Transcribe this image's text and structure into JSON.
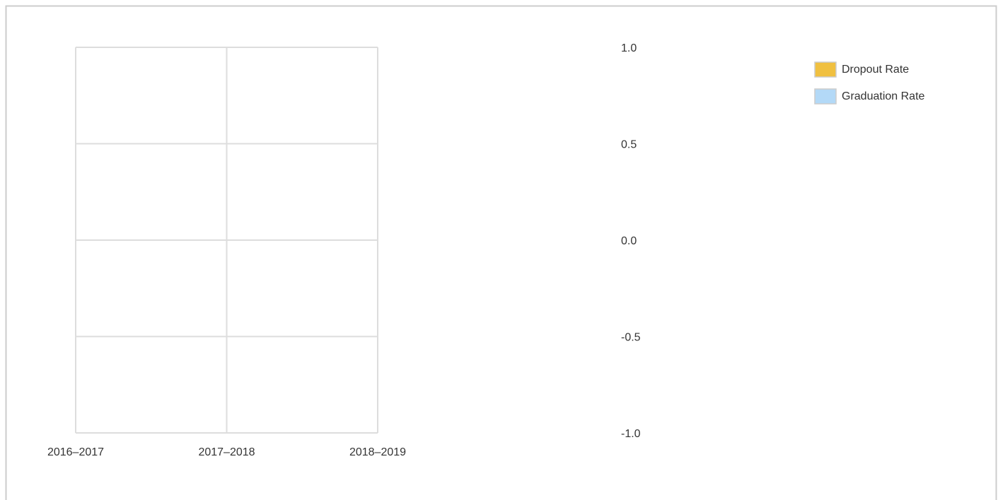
{
  "chart_data": {
    "type": "line",
    "categories": [
      "2016–2017",
      "2017–2018",
      "2018–2019"
    ],
    "series": [
      {
        "name": "Dropout Rate",
        "color": "#f0c040",
        "values": [
          null,
          null,
          null
        ]
      },
      {
        "name": "Graduation Rate",
        "color": "#b3d9f7",
        "values": [
          null,
          null,
          null
        ]
      }
    ],
    "ylim": [
      -1,
      1
    ],
    "yticks": [
      {
        "value": -1,
        "label": "-1.0"
      },
      -0.5,
      {
        "value": 0,
        "label": "0.0"
      },
      0.5,
      {
        "value": 1,
        "label": "1.0"
      }
    ],
    "grid": true,
    "legend": "top-right"
  }
}
